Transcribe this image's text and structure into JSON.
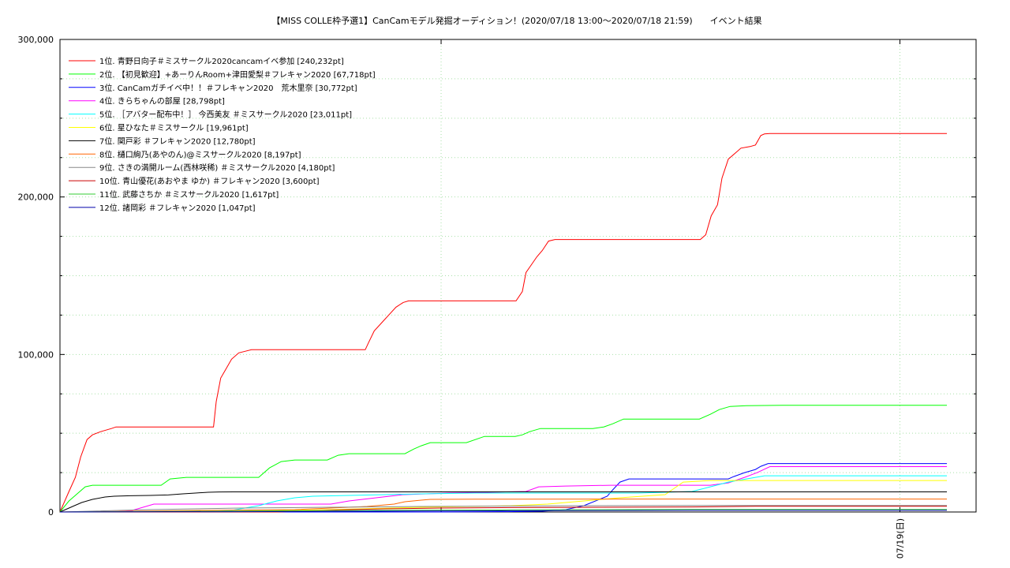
{
  "chart_data": {
    "type": "line",
    "title": "【MISS COLLE枠予選1】CanCamモデル発掘オーディション！(2020/07/18 13:00〜2020/07/18 21:59)　　イベント結果",
    "xlabel": "",
    "ylabel": "",
    "xlim": [
      0,
      9.3
    ],
    "ylim": [
      0,
      300000
    ],
    "yticks": [
      0,
      100000,
      200000,
      300000
    ],
    "ytick_labels": [
      "0",
      "100,000",
      "200,000",
      "300,000"
    ],
    "xticks": [
      {
        "x": 4.22,
        "label": ""
      },
      {
        "x": 9.3,
        "label": "07/19(日)"
      }
    ],
    "grid": true,
    "legend_position": "top-left",
    "series": [
      {
        "name": "1位. 青野日向子＃ミスサークル2020cancamイベ参加 [240,232pt]",
        "color": "#ff0000",
        "x": [
          0,
          0.1,
          0.17,
          0.23,
          0.3,
          0.36,
          0.45,
          0.57,
          0.62,
          0.7,
          1.7,
          1.73,
          1.78,
          1.83,
          1.9,
          1.98,
          2.05,
          2.12,
          2.18,
          2.24,
          3.38,
          3.42,
          3.48,
          3.56,
          3.64,
          3.72,
          3.8,
          3.86,
          5.05,
          5.12,
          5.16,
          5.22,
          5.28,
          5.34,
          5.41,
          5.48,
          5.56,
          5.63,
          7.09,
          7.15,
          7.21,
          7.28,
          7.33,
          7.4,
          7.48,
          7.54,
          7.64,
          7.7,
          7.76,
          7.8,
          7.86,
          9.82
        ],
        "values": [
          0,
          13000,
          22000,
          35000,
          46000,
          49000,
          51000,
          53000,
          54000,
          54000,
          54000,
          70000,
          85000,
          90000,
          97000,
          101000,
          102000,
          103000,
          103000,
          103000,
          103000,
          108000,
          115000,
          120000,
          125000,
          130000,
          133000,
          134000,
          134000,
          140000,
          152000,
          157000,
          162000,
          166000,
          172000,
          173000,
          173000,
          173000,
          173000,
          176000,
          188000,
          195000,
          212000,
          224000,
          228000,
          231000,
          232000,
          233000,
          239000,
          240000,
          240232,
          240232
        ]
      },
      {
        "name": "2位. 【初見歓迎】+あーりんRoom+津田愛梨＃フレキャン2020 [67,718pt]",
        "color": "#00ff00",
        "x": [
          0,
          0.1,
          0.2,
          0.28,
          0.36,
          0.45,
          1.12,
          1.22,
          1.4,
          2.2,
          2.32,
          2.45,
          2.6,
          2.8,
          2.96,
          3.08,
          3.2,
          3.36,
          3.82,
          3.92,
          4.0,
          4.1,
          4.2,
          4.5,
          4.7,
          5.04,
          5.12,
          5.2,
          5.32,
          5.9,
          6.02,
          6.12,
          6.24,
          6.38,
          7.08,
          7.2,
          7.3,
          7.42,
          7.6,
          8.0,
          9.82
        ],
        "values": [
          0,
          7000,
          12000,
          16000,
          17000,
          17000,
          17000,
          21000,
          22000,
          22000,
          28000,
          32000,
          33000,
          33000,
          33000,
          36000,
          37000,
          37000,
          37000,
          40000,
          42000,
          44000,
          44000,
          44000,
          48000,
          48000,
          49000,
          51000,
          53000,
          53000,
          54000,
          56000,
          59000,
          59000,
          59000,
          62000,
          65000,
          67000,
          67500,
          67718,
          67718
        ]
      },
      {
        "name": "3位. CanCamガチイベ中！！＃フレキャン2020　荒木里奈 [30,772pt]",
        "color": "#0000ff",
        "x": [
          0,
          0.5,
          1.5,
          3.0,
          4.2,
          4.96,
          5.34,
          5.6,
          5.8,
          6.06,
          6.12,
          6.2,
          6.3,
          6.5,
          7.2,
          7.4,
          7.46,
          7.58,
          7.7,
          7.76,
          7.84,
          9.82
        ],
        "values": [
          0,
          0,
          0,
          0,
          0,
          200,
          500,
          1500,
          4000,
          10000,
          14000,
          19000,
          21000,
          21000,
          21000,
          21000,
          22500,
          25000,
          27000,
          29000,
          30772,
          30772
        ]
      },
      {
        "name": "4位. きらちゃんの部屋 [28,798pt]",
        "color": "#ff00ff",
        "x": [
          0,
          0.6,
          0.8,
          1.04,
          1.3,
          2.4,
          3.0,
          3.2,
          3.5,
          3.8,
          4.3,
          5.16,
          5.3,
          5.6,
          6.1,
          7.2,
          7.4,
          7.58,
          7.72,
          7.86,
          9.82
        ],
        "values": [
          0,
          0,
          1000,
          5000,
          5000,
          5000,
          5000,
          7000,
          9000,
          11000,
          12000,
          13000,
          16000,
          16500,
          17000,
          17000,
          18500,
          22000,
          25000,
          28798,
          28798
        ]
      },
      {
        "name": "5位. ［アバター配布中！］ 今西美友 ＃ミスサークル2020 [23,011pt]",
        "color": "#00ffff",
        "x": [
          0,
          1.6,
          1.9,
          2.2,
          2.4,
          2.6,
          2.8,
          3.2,
          3.6,
          4.0,
          4.6,
          5.2,
          5.8,
          6.4,
          7.0,
          7.2,
          7.4,
          7.6,
          7.8,
          9.82
        ],
        "values": [
          0,
          0,
          1000,
          4000,
          7000,
          9000,
          10000,
          10500,
          11000,
          11500,
          12000,
          12000,
          12000,
          12000,
          13000,
          16000,
          19000,
          21000,
          23011,
          23011
        ]
      },
      {
        "name": "6位. 星ひなた＃ミスサークル [19,961pt]",
        "color": "#ffff00",
        "x": [
          0,
          2.0,
          3.0,
          4.0,
          5.0,
          5.4,
          5.8,
          6.2,
          6.7,
          6.9,
          7.2,
          9.82
        ],
        "values": [
          0,
          500,
          1500,
          3000,
          4000,
          5000,
          7000,
          9000,
          11000,
          19000,
          19961,
          19961
        ]
      },
      {
        "name": "7位. 関戸彩 ＃フレキャン2020 [12,780pt]",
        "color": "#000000",
        "x": [
          0,
          0.12,
          0.24,
          0.36,
          0.5,
          0.6,
          0.78,
          1.0,
          1.2,
          1.36,
          1.5,
          1.64,
          1.76,
          1.92,
          9.82
        ],
        "values": [
          0,
          3000,
          6000,
          8000,
          9500,
          10000,
          10300,
          10500,
          10800,
          11500,
          12000,
          12500,
          12700,
          12780,
          12780
        ]
      },
      {
        "name": "8位. 樋口絢乃(あやのん)@ミスサークル2020 [8,197pt]",
        "color": "#ff6600",
        "x": [
          0,
          0.8,
          1.6,
          2.6,
          3.0,
          3.4,
          3.7,
          3.82,
          4.0,
          4.1,
          4.6,
          5.0,
          6.0,
          7.0,
          9.82
        ],
        "values": [
          0,
          500,
          1000,
          1500,
          2500,
          3500,
          5000,
          6500,
          7500,
          8000,
          8100,
          8150,
          8197,
          8197,
          8197
        ]
      },
      {
        "name": "9位. さきの満開ルーム(西林咲稀) ＃ミスサークル2020 [4,180pt]",
        "color": "#888888",
        "x": [
          0,
          1.0,
          2.0,
          3.0,
          4.0,
          5.0,
          6.0,
          7.0,
          7.8,
          9.82
        ],
        "values": [
          0,
          1500,
          2500,
          3000,
          3500,
          3800,
          4000,
          4100,
          4180,
          4180
        ]
      },
      {
        "name": "10位. 青山優花(あおやま ゆか) ＃フレキャン2020 [3,600pt]",
        "color": "#cc0000",
        "x": [
          0,
          2.4,
          2.8,
          3.2,
          3.6,
          4.2,
          5.0,
          6.0,
          7.0,
          7.3,
          7.7,
          9.82
        ],
        "values": [
          0,
          0,
          800,
          1500,
          2000,
          2500,
          2800,
          3000,
          3200,
          3400,
          3600,
          3600
        ]
      },
      {
        "name": "11位. 武藤さちか ＃ミスサークル2020 [1,617pt]",
        "color": "#33cc33",
        "x": [
          0,
          1.0,
          2.0,
          3.0,
          4.0,
          5.0,
          6.0,
          7.0,
          9.82
        ],
        "values": [
          0,
          300,
          600,
          900,
          1100,
          1300,
          1450,
          1617,
          1617
        ]
      },
      {
        "name": "12位. 諸岡彩 ＃フレキャン2020 [1,047pt]",
        "color": "#0000aa",
        "x": [
          0,
          1.0,
          2.0,
          3.0,
          4.0,
          5.0,
          6.0,
          7.0,
          9.82
        ],
        "values": [
          0,
          100,
          200,
          400,
          600,
          800,
          950,
          1047,
          1047
        ]
      }
    ]
  }
}
